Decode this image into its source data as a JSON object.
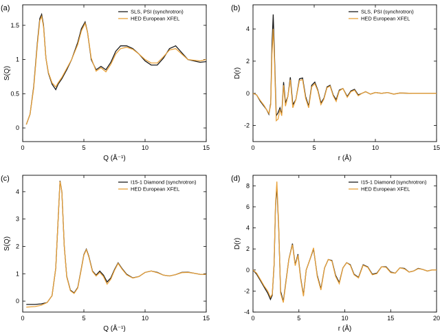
{
  "colors": {
    "series_a": "#1a1a1a",
    "series_b": "#e8a13a"
  },
  "chart_data": [
    {
      "type": "line",
      "panel_label": "(a)",
      "xlabel": "Q (Å⁻¹)",
      "ylabel": "S(Q)",
      "xlim": [
        0,
        15
      ],
      "ylim": [
        -0.2,
        1.8
      ],
      "xticks": [
        0,
        5,
        10,
        15
      ],
      "yticks": [
        0,
        0.5,
        1,
        1.5
      ],
      "legend_position": "top-right",
      "series": [
        {
          "name": "SLS, PSI (synchrotron)",
          "x": [
            0.3,
            0.6,
            0.9,
            1.2,
            1.4,
            1.55,
            1.7,
            1.9,
            2.1,
            2.4,
            2.7,
            2.9,
            3.2,
            3.6,
            4.0,
            4.5,
            4.8,
            5.1,
            5.3,
            5.6,
            6.0,
            6.4,
            6.8,
            7.2,
            7.6,
            8.0,
            8.5,
            9.0,
            9.5,
            10.0,
            10.5,
            11.0,
            11.5,
            12.0,
            12.5,
            13.0,
            13.5,
            14.0,
            14.5,
            15.0
          ],
          "y": [
            0.05,
            0.2,
            0.6,
            1.25,
            1.6,
            1.66,
            1.5,
            1.02,
            0.8,
            0.64,
            0.56,
            0.64,
            0.72,
            0.85,
            1.0,
            1.25,
            1.45,
            1.55,
            1.4,
            1.0,
            0.85,
            0.9,
            0.85,
            0.96,
            1.12,
            1.2,
            1.2,
            1.16,
            1.08,
            0.98,
            0.92,
            0.92,
            1.02,
            1.16,
            1.2,
            1.1,
            1.0,
            0.98,
            0.96,
            0.97
          ]
        },
        {
          "name": "HED European XFEL",
          "x": [
            0.3,
            0.6,
            0.9,
            1.2,
            1.4,
            1.55,
            1.7,
            1.9,
            2.1,
            2.4,
            2.7,
            2.9,
            3.2,
            3.6,
            4.0,
            4.5,
            4.8,
            5.1,
            5.3,
            5.6,
            6.0,
            6.4,
            6.8,
            7.2,
            7.6,
            8.0,
            8.5,
            9.0,
            9.5,
            10.0,
            10.5,
            11.0,
            11.5,
            12.0,
            12.5,
            13.0,
            13.5,
            14.0,
            14.5,
            15.0
          ],
          "y": [
            0.05,
            0.2,
            0.58,
            1.22,
            1.57,
            1.63,
            1.48,
            1.02,
            0.81,
            0.66,
            0.6,
            0.66,
            0.74,
            0.87,
            1.0,
            1.22,
            1.42,
            1.53,
            1.4,
            1.02,
            0.83,
            0.88,
            0.82,
            0.93,
            1.08,
            1.16,
            1.18,
            1.15,
            1.08,
            1.0,
            0.95,
            0.95,
            1.04,
            1.14,
            1.16,
            1.08,
            1.0,
            0.99,
            0.98,
            1.0
          ]
        }
      ]
    },
    {
      "type": "line",
      "panel_label": "(b)",
      "xlabel": "r (Å)",
      "ylabel": "D(r)",
      "xlim": [
        0,
        15
      ],
      "ylim": [
        -3,
        5.5
      ],
      "xticks": [
        0,
        5,
        10,
        15
      ],
      "yticks": [
        -2,
        0,
        2,
        4
      ],
      "legend_position": "top-right",
      "series": [
        {
          "name": "SLS, PSI (synchrotron)",
          "x": [
            0,
            0.3,
            0.6,
            0.9,
            1.1,
            1.3,
            1.45,
            1.55,
            1.65,
            1.75,
            1.9,
            2.05,
            2.2,
            2.35,
            2.5,
            2.65,
            2.85,
            3.05,
            3.25,
            3.5,
            3.8,
            4.05,
            4.3,
            4.55,
            4.8,
            5.05,
            5.3,
            5.55,
            5.8,
            6.05,
            6.3,
            6.55,
            6.8,
            7.05,
            7.35,
            7.7,
            8.0,
            8.3,
            8.6,
            8.9,
            9.2,
            9.6,
            10.0,
            10.5,
            11.0,
            11.5,
            12.0,
            13.0,
            14.0,
            15.0
          ],
          "y": [
            0,
            -0.1,
            -0.5,
            -0.8,
            -1.0,
            -1.3,
            -0.6,
            3.0,
            4.9,
            2.6,
            -1.4,
            -1.2,
            -0.9,
            -1.3,
            0.7,
            -0.6,
            -0.2,
            1.0,
            -0.7,
            -0.4,
            0.9,
            0.95,
            -0.2,
            -0.8,
            0.5,
            0.7,
            0.2,
            -0.6,
            -0.3,
            0.4,
            0.5,
            -0.1,
            -0.4,
            0.2,
            0.3,
            -0.2,
            0.15,
            0.25,
            -0.1,
            0.0,
            0.1,
            -0.05,
            0.05,
            0.0,
            0.05,
            -0.05,
            0.02,
            0.0,
            0.0,
            0.0
          ]
        },
        {
          "name": "HED European XFEL",
          "x": [
            0,
            0.3,
            0.6,
            0.9,
            1.1,
            1.3,
            1.45,
            1.55,
            1.65,
            1.75,
            1.9,
            2.05,
            2.2,
            2.35,
            2.5,
            2.65,
            2.85,
            3.05,
            3.25,
            3.5,
            3.8,
            4.05,
            4.3,
            4.55,
            4.8,
            5.05,
            5.3,
            5.55,
            5.8,
            6.05,
            6.3,
            6.55,
            6.8,
            7.05,
            7.35,
            7.7,
            8.0,
            8.3,
            8.6,
            8.9,
            9.2,
            9.6,
            10.0,
            10.5,
            11.0,
            11.5,
            12.0,
            13.0,
            14.0,
            15.0
          ],
          "y": [
            0,
            -0.1,
            -0.45,
            -0.75,
            -1.0,
            -1.25,
            -0.7,
            2.4,
            4.0,
            2.2,
            -1.7,
            -1.6,
            -1.0,
            -1.4,
            0.5,
            -0.8,
            -0.2,
            0.85,
            -0.9,
            -0.4,
            0.8,
            0.85,
            -0.3,
            -0.9,
            0.4,
            0.6,
            0.15,
            -0.7,
            -0.35,
            0.35,
            0.45,
            -0.15,
            -0.5,
            0.15,
            0.3,
            -0.25,
            0.1,
            0.2,
            -0.15,
            0.0,
            0.1,
            -0.05,
            0.05,
            0.0,
            0.05,
            -0.05,
            0.02,
            0.0,
            0.0,
            0.0
          ]
        }
      ]
    },
    {
      "type": "line",
      "panel_label": "(c)",
      "xlabel": "Q (Å⁻¹)",
      "ylabel": "S(Q)",
      "xlim": [
        0,
        15
      ],
      "ylim": [
        -0.4,
        4.6
      ],
      "xticks": [
        0,
        5,
        10,
        15
      ],
      "yticks": [
        0,
        1,
        2,
        3,
        4
      ],
      "legend_position": "top-right",
      "series": [
        {
          "name": "I15-1 Diamond (synchrotron)",
          "x": [
            0.3,
            1.0,
            1.5,
            2.0,
            2.4,
            2.7,
            2.9,
            3.05,
            3.2,
            3.4,
            3.6,
            3.9,
            4.2,
            4.5,
            4.8,
            5.0,
            5.2,
            5.4,
            5.7,
            6.0,
            6.3,
            6.6,
            6.9,
            7.2,
            7.5,
            7.8,
            8.1,
            8.5,
            9.0,
            9.5,
            10.0,
            10.5,
            11.0,
            11.5,
            12.0,
            12.5,
            13.0,
            13.5,
            14.0,
            14.5,
            15.0
          ],
          "y": [
            -0.12,
            -0.12,
            -0.1,
            -0.05,
            0.2,
            1.2,
            3.0,
            4.4,
            4.0,
            2.0,
            0.9,
            0.4,
            0.3,
            0.5,
            1.2,
            1.7,
            1.9,
            1.65,
            1.1,
            0.95,
            1.1,
            0.95,
            0.7,
            0.85,
            1.15,
            1.4,
            1.2,
            0.98,
            0.85,
            0.9,
            1.05,
            1.1,
            1.05,
            0.95,
            0.92,
            0.97,
            1.05,
            1.06,
            1.02,
            0.98,
            0.98
          ]
        },
        {
          "name": "HED European XFEL",
          "x": [
            0.3,
            1.0,
            1.5,
            2.0,
            2.4,
            2.7,
            2.9,
            3.05,
            3.2,
            3.4,
            3.6,
            3.9,
            4.2,
            4.5,
            4.8,
            5.0,
            5.2,
            5.4,
            5.7,
            6.0,
            6.3,
            6.6,
            6.9,
            7.2,
            7.5,
            7.8,
            8.1,
            8.5,
            9.0,
            9.5,
            10.0,
            10.5,
            11.0,
            11.5,
            12.0,
            12.5,
            13.0,
            13.5,
            14.0,
            14.5,
            15.0
          ],
          "y": [
            -0.22,
            -0.2,
            -0.15,
            -0.05,
            0.2,
            1.2,
            3.0,
            4.38,
            4.0,
            2.0,
            0.88,
            0.38,
            0.28,
            0.48,
            1.18,
            1.68,
            1.88,
            1.62,
            1.08,
            0.92,
            1.05,
            0.9,
            0.62,
            0.8,
            1.12,
            1.38,
            1.18,
            0.96,
            0.84,
            0.9,
            1.05,
            1.1,
            1.04,
            0.95,
            0.92,
            0.97,
            1.04,
            1.05,
            1.02,
            0.98,
            0.98
          ]
        }
      ]
    },
    {
      "type": "line",
      "panel_label": "(d)",
      "xlabel": "r (Å)",
      "ylabel": "D(r)",
      "xlim": [
        0,
        20
      ],
      "ylim": [
        -4,
        9
      ],
      "xticks": [
        0,
        5,
        10,
        15,
        20
      ],
      "yticks": [
        -4,
        -2,
        0,
        2,
        4,
        6,
        8
      ],
      "legend_position": "top-right",
      "series": [
        {
          "name": "I15-1 Diamond (synchrotron)",
          "x": [
            0,
            0.4,
            0.8,
            1.2,
            1.6,
            1.9,
            2.1,
            2.3,
            2.45,
            2.6,
            2.8,
            3.0,
            3.3,
            3.6,
            3.9,
            4.3,
            4.6,
            4.9,
            5.2,
            5.5,
            5.8,
            6.2,
            6.6,
            7.0,
            7.4,
            7.8,
            8.2,
            8.6,
            9.0,
            9.4,
            9.8,
            10.2,
            10.6,
            11.0,
            11.5,
            12.0,
            12.5,
            13.0,
            13.5,
            14.0,
            14.5,
            15.0,
            15.5,
            16.0,
            16.5,
            17.0,
            17.5,
            18.0,
            18.5,
            19.0,
            19.5,
            20.0
          ],
          "y": [
            0,
            -0.4,
            -1.0,
            -1.6,
            -2.2,
            -2.8,
            -2.4,
            0.5,
            6.0,
            8.0,
            4.0,
            -2.0,
            -3.0,
            -1.0,
            1.0,
            2.5,
            0.5,
            1.5,
            -0.8,
            -2.4,
            0.0,
            1.0,
            2.0,
            -0.5,
            -1.8,
            0.2,
            1.0,
            0.9,
            -0.5,
            -1.2,
            0.2,
            0.7,
            0.5,
            -0.4,
            -0.7,
            0.5,
            0.3,
            -0.4,
            -0.3,
            0.3,
            0.3,
            -0.2,
            -0.3,
            0.2,
            0.15,
            -0.2,
            -0.1,
            0.15,
            0.05,
            -0.1,
            0.0,
            0.0
          ]
        },
        {
          "name": "HED European XFEL",
          "x": [
            0,
            0.4,
            0.8,
            1.2,
            1.6,
            1.9,
            2.1,
            2.3,
            2.45,
            2.6,
            2.8,
            3.0,
            3.3,
            3.6,
            3.9,
            4.3,
            4.6,
            4.9,
            5.2,
            5.5,
            5.8,
            6.2,
            6.6,
            7.0,
            7.4,
            7.8,
            8.2,
            8.6,
            9.0,
            9.4,
            9.8,
            10.2,
            10.6,
            11.0,
            11.5,
            12.0,
            12.5,
            13.0,
            13.5,
            14.0,
            14.5,
            15.0,
            15.5,
            16.0,
            16.5,
            17.0,
            17.5,
            18.0,
            18.5,
            19.0,
            19.5,
            20.0
          ],
          "y": [
            0,
            -0.3,
            -0.9,
            -1.5,
            -2.0,
            -2.6,
            -2.3,
            0.6,
            6.2,
            8.4,
            4.2,
            -2.2,
            -3.1,
            -1.1,
            1.0,
            2.4,
            0.4,
            1.4,
            -0.9,
            -2.5,
            0.0,
            1.0,
            2.1,
            -0.6,
            -1.9,
            0.2,
            1.0,
            0.85,
            -0.6,
            -1.3,
            0.2,
            0.7,
            0.45,
            -0.45,
            -0.75,
            0.45,
            0.25,
            -0.45,
            -0.35,
            0.3,
            0.25,
            -0.25,
            -0.3,
            0.2,
            0.1,
            -0.2,
            -0.1,
            0.12,
            0.05,
            -0.1,
            0.0,
            0.0
          ]
        }
      ]
    }
  ]
}
